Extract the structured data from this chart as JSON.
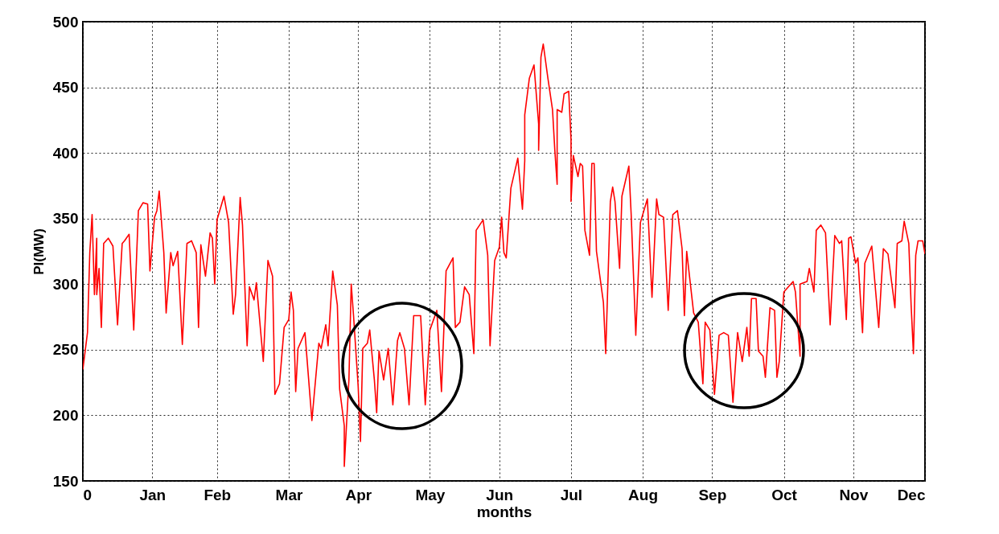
{
  "chart_data": {
    "type": "line",
    "xlabel": "months",
    "ylabel": "PI(MW)",
    "xlim": [
      "--01-01",
      "--12-31"
    ],
    "ylim": [
      150,
      500
    ],
    "xticks": [
      {
        "value": "--01-01",
        "label": "0"
      },
      {
        "value": "--01-31",
        "label": "Jan"
      },
      {
        "value": "--02-28",
        "label": "Feb"
      },
      {
        "value": "--03-31",
        "label": "Mar"
      },
      {
        "value": "--04-30",
        "label": "Apr"
      },
      {
        "value": "--05-31",
        "label": "May"
      },
      {
        "value": "--06-30",
        "label": "Jun"
      },
      {
        "value": "--07-31",
        "label": "Jul"
      },
      {
        "value": "--08-31",
        "label": "Aug"
      },
      {
        "value": "--09-30",
        "label": "Sep"
      },
      {
        "value": "--10-31",
        "label": "Oct"
      },
      {
        "value": "--11-30",
        "label": "Nov"
      },
      {
        "value": "--12-31",
        "label": "Dec"
      }
    ],
    "yticks": [
      150,
      200,
      250,
      300,
      350,
      400,
      450,
      500
    ],
    "grid": true,
    "x": [
      "--01-01",
      "--01-01",
      "--01-03",
      "--01-04",
      "--01-05",
      "--01-06",
      "--01-07",
      "--01-07",
      "--01-08",
      "--01-09",
      "--01-10",
      "--01-12",
      "--01-14",
      "--01-16",
      "--01-18",
      "--01-19",
      "--01-21",
      "--01-23",
      "--01-25",
      "--01-27",
      "--01-29",
      "--01-30",
      "--02-01",
      "--02-02",
      "--02-03",
      "--02-05",
      "--02-06",
      "--02-08",
      "--02-09",
      "--02-11",
      "--02-13",
      "--02-15",
      "--02-17",
      "--02-19",
      "--02-20",
      "--02-21",
      "--02-23",
      "--02-25",
      "--02-26",
      "--02-27",
      "--02-28",
      "--03-03",
      "--03-05",
      "--03-07",
      "--03-08",
      "--03-10",
      "--03-11",
      "--03-13",
      "--03-14",
      "--03-16",
      "--03-17",
      "--03-20",
      "--03-22",
      "--03-24",
      "--03-25",
      "--03-27",
      "--03-29",
      "--03-31",
      "--04-01",
      "--04-02",
      "--04-03",
      "--04-04",
      "--04-07",
      "--04-10",
      "--04-13",
      "--04-14",
      "--04-16",
      "--04-17",
      "--04-19",
      "--04-21",
      "--04-22",
      "--04-24",
      "--04-24",
      "--04-26",
      "--04-27",
      "--04-28",
      "--04-30",
      "--05-01",
      "--05-02",
      "--05-04",
      "--05-05",
      "--05-07",
      "--05-08",
      "--05-09",
      "--05-11",
      "--05-13",
      "--05-15",
      "--05-17",
      "--05-18",
      "--05-20",
      "--05-22",
      "--05-24",
      "--05-27",
      "--05-29",
      "--05-31",
      "--06-03",
      "--06-05",
      "--06-07",
      "--06-10",
      "--06-11",
      "--06-13",
      "--06-15",
      "--06-17",
      "--06-19",
      "--06-20",
      "--06-23",
      "--06-25",
      "--06-26",
      "--06-28",
      "--06-30",
      "--07-01",
      "--07-02",
      "--07-03",
      "--07-05",
      "--07-08",
      "--07-10",
      "--07-11",
      "--07-11",
      "--07-13",
      "--07-15",
      "--07-17",
      "--07-17",
      "--07-18",
      "--07-19",
      "--07-21",
      "--07-23",
      "--07-24",
      "--07-25",
      "--07-25",
      "--07-27",
      "--07-28",
      "--07-30",
      "--07-31",
      "--07-31",
      "--08-01",
      "--08-03",
      "--08-04",
      "--08-05",
      "--08-06",
      "--08-08",
      "--08-09",
      "--08-10",
      "--08-11",
      "--08-14",
      "--08-15",
      "--08-17",
      "--08-18",
      "--08-19",
      "--08-21",
      "--08-22",
      "--08-25",
      "--08-26",
      "--08-28",
      "--08-30",
      "--09-02",
      "--09-04",
      "--09-06",
      "--09-07",
      "--09-09",
      "--09-11",
      "--09-13",
      "--09-15",
      "--09-17",
      "--09-18",
      "--09-19",
      "--09-22",
      "--09-24",
      "--09-26",
      "--09-27",
      "--09-29",
      "--10-01",
      "--10-03",
      "--10-05",
      "--10-07",
      "--10-09",
      "--10-11",
      "--10-13",
      "--10-15",
      "--10-16",
      "--10-17",
      "--10-19",
      "--10-20",
      "--10-22",
      "--10-23",
      "--10-25",
      "--10-27",
      "--10-28",
      "--10-29",
      "--10-31",
      "--11-04",
      "--11-05",
      "--11-07",
      "--11-07",
      "--11-10",
      "--11-11",
      "--11-13",
      "--11-14",
      "--11-16",
      "--11-18",
      "--11-20",
      "--11-22",
      "--11-24",
      "--11-25",
      "--11-27",
      "--11-28",
      "--11-29",
      "--12-01",
      "--12-02",
      "--12-04",
      "--12-05",
      "--12-08",
      "--12-11",
      "--12-13",
      "--12-15",
      "--12-18",
      "--12-19",
      "--12-21",
      "--12-22",
      "--12-24",
      "--12-25",
      "--12-26",
      "--12-27",
      "--12-28",
      "--12-30",
      "--12-31"
    ],
    "series": [
      {
        "color": "#ff0000",
        "values": [
          235,
          235,
          263,
          324,
          353,
          292,
          335,
          292,
          312,
          267,
          331,
          335,
          329,
          269,
          331,
          333,
          338,
          265,
          356,
          362,
          361,
          310,
          351,
          356,
          371,
          324,
          278,
          324,
          314,
          325,
          254,
          331,
          333,
          324,
          267,
          330,
          306,
          339,
          335,
          300,
          349,
          367,
          347,
          277,
          292,
          366,
          345,
          253,
          298,
          288,
          301,
          241,
          318,
          306,
          216,
          224,
          267,
          273,
          294,
          280,
          218,
          251,
          263,
          196,
          255,
          251,
          269,
          253,
          310,
          284,
          220,
          192,
          161,
          227,
          300,
          276,
          222,
          180,
          251,
          255,
          265,
          227,
          202,
          249,
          227,
          251,
          208,
          257,
          263,
          251,
          208,
          276,
          276,
          208,
          265,
          280,
          218,
          310,
          320,
          267,
          271,
          298,
          292,
          247,
          341,
          349,
          322,
          253,
          318,
          328,
          351,
          324,
          320,
          373,
          396,
          357,
          394,
          429,
          457,
          467,
          422,
          402,
          473,
          483,
          457,
          433,
          402,
          376,
          433,
          431,
          445,
          447,
          410,
          363,
          398,
          382,
          392,
          390,
          341,
          322,
          392,
          392,
          325,
          286,
          247,
          363,
          374,
          363,
          312,
          367,
          390,
          353,
          261,
          347,
          365,
          290,
          365,
          353,
          351,
          280,
          353,
          356,
          327,
          276,
          325,
          278,
          271,
          224,
          271,
          265,
          216,
          261,
          263,
          261,
          210,
          263,
          241,
          267,
          245,
          289,
          289,
          249,
          245,
          229,
          282,
          280,
          229,
          241,
          294,
          302,
          294,
          245,
          300,
          302,
          312,
          294,
          341,
          345,
          339,
          269,
          337,
          331,
          333,
          273,
          335,
          336,
          316,
          320,
          263,
          316,
          329,
          267,
          327,
          323,
          282,
          331,
          333,
          348,
          331,
          284,
          247,
          322,
          333,
          333,
          323
        ]
      }
    ]
  }
}
